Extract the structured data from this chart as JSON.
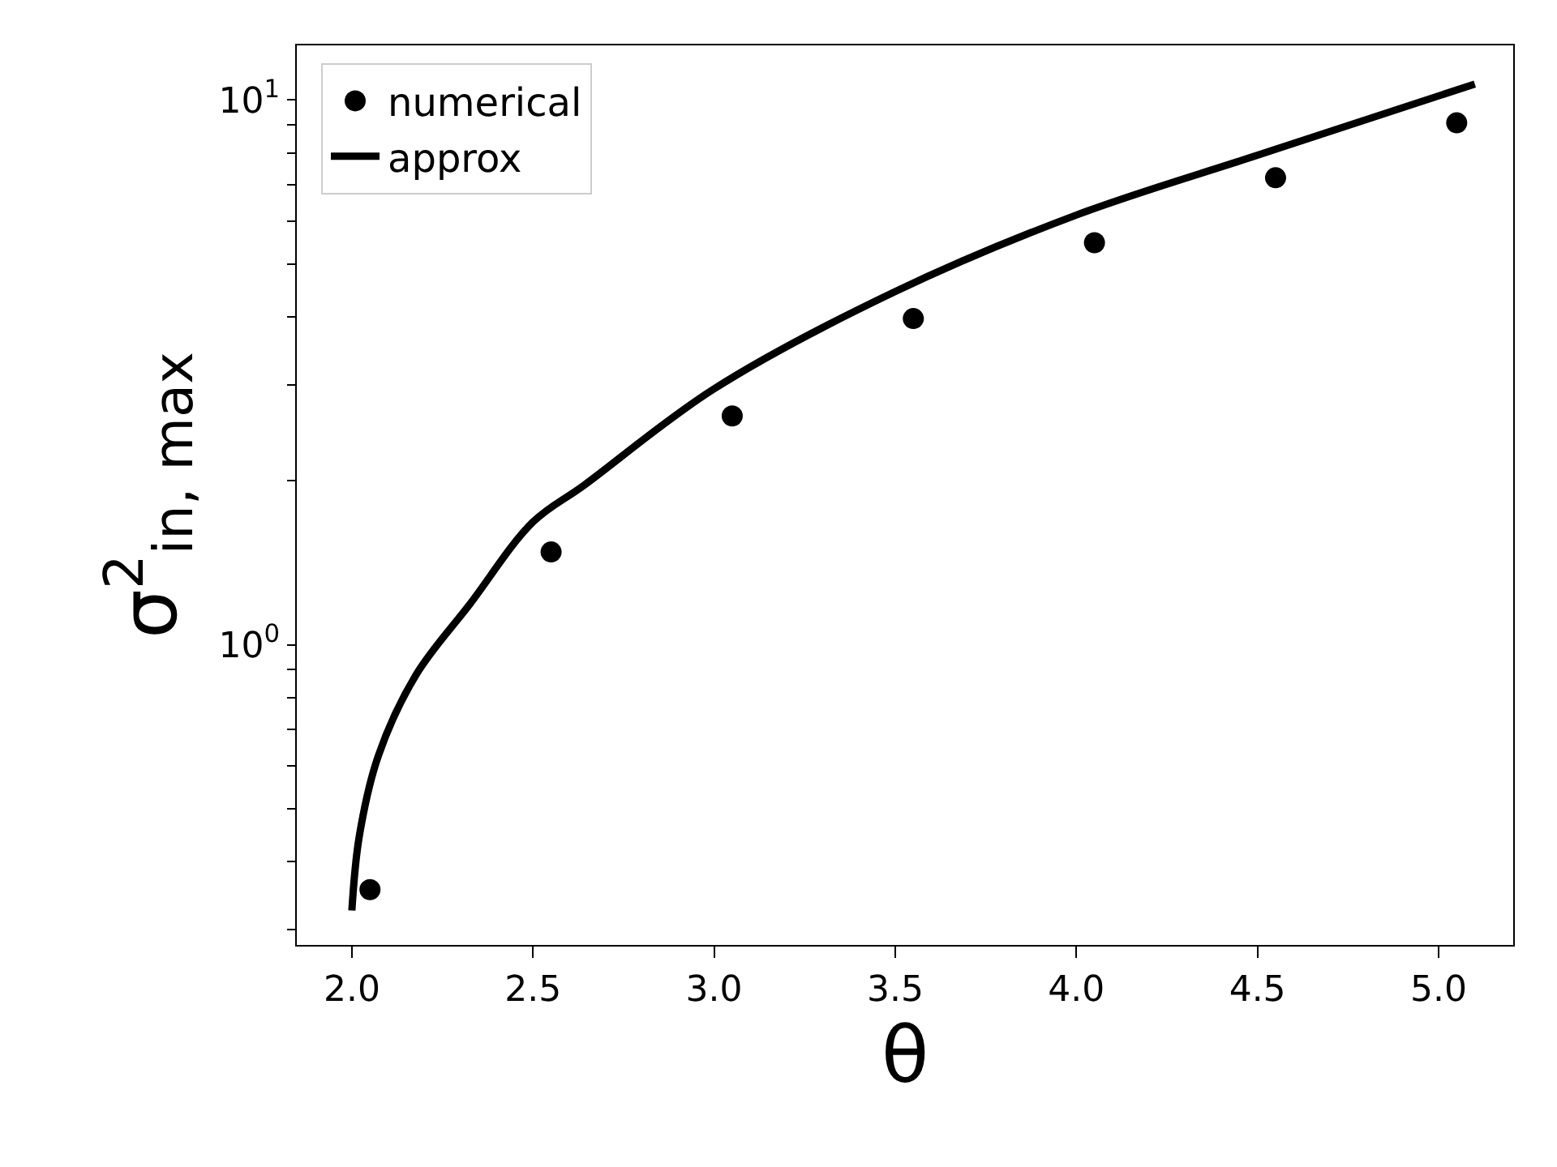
{
  "chart_data": {
    "type": "scatter",
    "xlabel": "θ",
    "ylabel": "σ$^{2}$$_{in, max}$",
    "log": "y",
    "legend": "top left",
    "xlim": [
      1.848,
      5.206
    ],
    "xticks": [
      {
        "value": 2.0,
        "label": "2.0"
      },
      2.5,
      {
        "value": 3.0,
        "label": "3.0"
      },
      3.5,
      {
        "value": 4.0,
        "label": "4.0"
      },
      4.5,
      {
        "value": 5.0,
        "label": "5.0"
      }
    ],
    "ylim": [
      0.281,
      12.6
    ],
    "yticks": [
      {
        "value": 0.3,
        "label": null
      },
      {
        "value": 0.4,
        "label": null
      },
      {
        "value": 0.5,
        "label": null
      },
      {
        "value": 0.6,
        "label": null
      },
      {
        "value": 0.7,
        "label": null
      },
      {
        "value": 0.8,
        "label": null
      },
      {
        "value": 0.9,
        "label": null
      },
      {
        "value": 1,
        "label": "10$^{0}$"
      },
      {
        "value": 2,
        "label": null
      },
      {
        "value": 3,
        "label": null
      },
      {
        "value": 4,
        "label": null
      },
      {
        "value": 5,
        "label": null
      },
      {
        "value": 6,
        "label": null
      },
      {
        "value": 7,
        "label": null
      },
      {
        "value": 8,
        "label": null
      },
      {
        "value": 9,
        "label": null
      },
      {
        "value": 10,
        "label": "10$^{1}$"
      }
    ],
    "series": [
      {
        "name": "numerical",
        "marker": "circle",
        "color": "#000000",
        "x": [
          2.05,
          2.55,
          3.05,
          3.55,
          4.05,
          4.55,
          5.05
        ],
        "values": [
          0.355,
          1.48,
          2.63,
          3.97,
          5.47,
          7.2,
          9.08
        ]
      },
      {
        "name": "approx",
        "type": "line",
        "line_style": "solid",
        "marker": "none",
        "color": "#000000",
        "x": [
          2.0,
          2.02,
          2.073,
          2.177,
          2.327,
          2.5,
          2.64,
          3.0,
          3.5,
          4.0,
          4.5,
          5.1
        ],
        "values": [
          0.325,
          0.443,
          0.625,
          0.88,
          1.19,
          1.68,
          1.96,
          2.95,
          4.45,
          6.15,
          7.92,
          10.7
        ]
      }
    ]
  }
}
